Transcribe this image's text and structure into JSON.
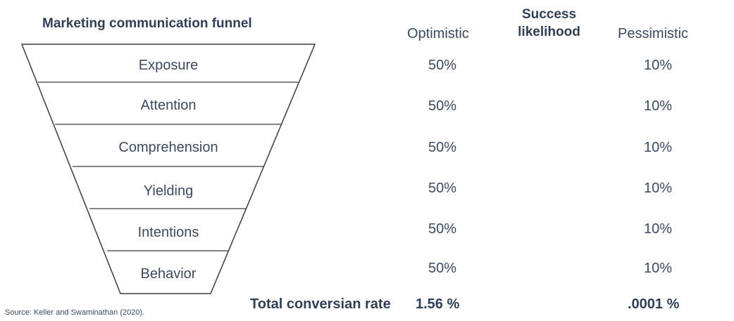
{
  "funnel": {
    "title": "Marketing communication funnel",
    "stages": [
      "Exposure",
      "Attention",
      "Comprehension",
      "Yielding",
      "Intentions",
      "Behavior"
    ]
  },
  "columns": {
    "optimistic": "Optimistic",
    "success_line1": "Success",
    "success_line2": "likelihood",
    "pessimistic": "Pessimistic"
  },
  "optimistic_values": [
    "50%",
    "50%",
    "50%",
    "50%",
    "50%",
    "50%"
  ],
  "pessimistic_values": [
    "10%",
    "10%",
    "10%",
    "10%",
    "10%",
    "10%"
  ],
  "totals": {
    "label": "Total conversian rate",
    "optimistic": "1.56 %",
    "pessimistic": ".0001 %"
  },
  "source": "Source: Keller and Swaminathan (2020)."
}
